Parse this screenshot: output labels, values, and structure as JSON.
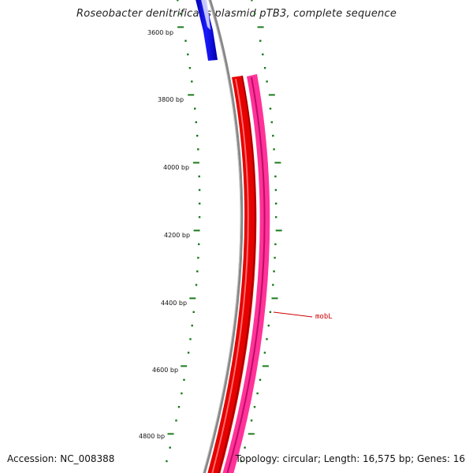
{
  "title": "Roseobacter denitrificans plasmid pTB3, complete sequence",
  "footer": {
    "accession": "Accession: NC_008388",
    "summary": "Topology: circular; Length: 16,575 bp; Genes: 16"
  },
  "tick_labels": [
    "3600 bp",
    "3800 bp",
    "4000 bp",
    "4200 bp",
    "4400 bp",
    "4600 bp",
    "4800 bp"
  ],
  "gene_labels": [
    "mobL"
  ],
  "colors": {
    "backbone": "#888888",
    "tick": "#1a7a1a",
    "gene_blue": "#0000e6",
    "gene_red": "#e60000",
    "gene_pink": "#ff3399",
    "label_red": "#cc0000"
  }
}
